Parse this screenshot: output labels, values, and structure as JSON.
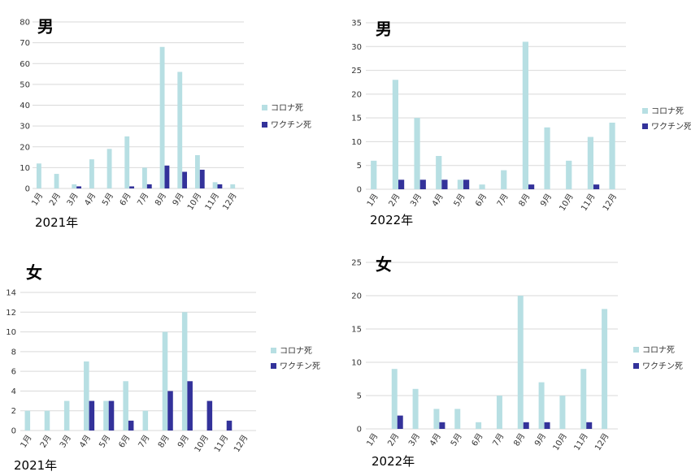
{
  "colors": {
    "corona": "#b7dfe3",
    "vaccine": "#33329a"
  },
  "chart_data": [
    {
      "type": "bar",
      "gender_label": "男",
      "year_label": "2021年",
      "categories": [
        "1月",
        "2月",
        "3月",
        "4月",
        "5月",
        "6月",
        "7月",
        "8月",
        "9月",
        "10月",
        "11月",
        "12月"
      ],
      "series": [
        {
          "name": "コロナ死",
          "values": [
            12,
            7,
            2,
            14,
            19,
            25,
            10,
            68,
            56,
            16,
            3,
            2
          ]
        },
        {
          "name": "ワクチン死",
          "values": [
            0,
            0,
            1,
            0,
            0,
            1,
            2,
            11,
            8,
            9,
            2,
            0
          ]
        }
      ],
      "ylim": [
        0,
        80
      ],
      "yticks": [
        0,
        10,
        20,
        30,
        40,
        50,
        60,
        70,
        80
      ],
      "grid": true,
      "legend": "right"
    },
    {
      "type": "bar",
      "gender_label": "男",
      "year_label": "2022年",
      "categories": [
        "1月",
        "2月",
        "3月",
        "4月",
        "5月",
        "6月",
        "7月",
        "8月",
        "9月",
        "10月",
        "11月",
        "12月"
      ],
      "series": [
        {
          "name": "コロナ死",
          "values": [
            6,
            23,
            15,
            7,
            2,
            1,
            4,
            31,
            13,
            6,
            11,
            14
          ]
        },
        {
          "name": "ワクチン死",
          "values": [
            0,
            2,
            2,
            2,
            2,
            0,
            0,
            1,
            0,
            0,
            1,
            0
          ]
        }
      ],
      "ylim": [
        0,
        35
      ],
      "yticks": [
        0,
        5,
        10,
        15,
        20,
        25,
        30,
        35
      ],
      "grid": true,
      "legend": "right"
    },
    {
      "type": "bar",
      "gender_label": "女",
      "year_label": "2021年",
      "categories": [
        "1月",
        "2月",
        "3月",
        "4月",
        "5月",
        "6月",
        "7月",
        "8月",
        "9月",
        "10月",
        "11月",
        "12月"
      ],
      "series": [
        {
          "name": "コロナ死",
          "values": [
            2,
            2,
            3,
            7,
            3,
            5,
            2,
            10,
            12,
            0,
            0,
            0
          ]
        },
        {
          "name": "ワクチン死",
          "values": [
            0,
            0,
            0,
            3,
            3,
            1,
            0,
            4,
            5,
            3,
            1,
            0
          ]
        }
      ],
      "ylim": [
        0,
        14
      ],
      "yticks": [
        0,
        2,
        4,
        6,
        8,
        10,
        12,
        14
      ],
      "grid": true,
      "legend": "right"
    },
    {
      "type": "bar",
      "gender_label": "女",
      "year_label": "2022年",
      "categories": [
        "1月",
        "2月",
        "3月",
        "4月",
        "5月",
        "6月",
        "7月",
        "8月",
        "9月",
        "10月",
        "11月",
        "12月"
      ],
      "series": [
        {
          "name": "コロナ死",
          "values": [
            0,
            9,
            6,
            3,
            3,
            1,
            5,
            20,
            7,
            5,
            9,
            18
          ]
        },
        {
          "name": "ワクチン死",
          "values": [
            0,
            2,
            0,
            1,
            0,
            0,
            0,
            1,
            1,
            0,
            1,
            0
          ]
        }
      ],
      "ylim": [
        0,
        25
      ],
      "yticks": [
        0,
        5,
        10,
        15,
        20,
        25
      ],
      "grid": true,
      "legend": "right"
    }
  ]
}
